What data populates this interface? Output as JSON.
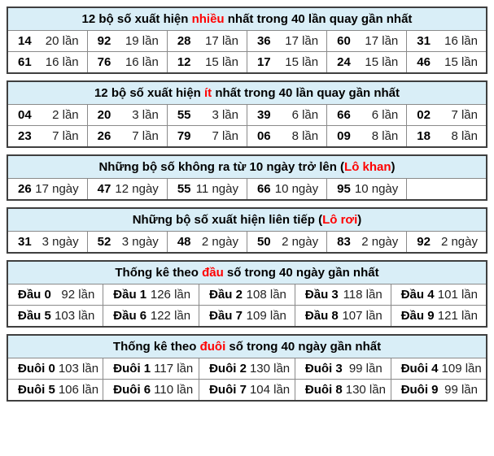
{
  "colors": {
    "accent_red": "#ff0000",
    "header_bg": "#d9eef7",
    "border_outer": "#3f3f3f",
    "border_inner": "#8a8a8a"
  },
  "tables": [
    {
      "id": "most-frequent-pairs",
      "title_parts": [
        {
          "text": "12 bộ số xuất hiện ",
          "red": false
        },
        {
          "text": "nhiều",
          "red": true
        },
        {
          "text": " nhất trong 40 lần quay gần nhất",
          "red": false
        }
      ],
      "trailing_empty": false,
      "rows": [
        [
          {
            "num": "14",
            "cnt": "20 lần"
          },
          {
            "num": "92",
            "cnt": "19 lần"
          },
          {
            "num": "28",
            "cnt": "17 lần"
          },
          {
            "num": "36",
            "cnt": "17 lần"
          },
          {
            "num": "60",
            "cnt": "17 lần"
          },
          {
            "num": "31",
            "cnt": "16 lần"
          }
        ],
        [
          {
            "num": "61",
            "cnt": "16 lần"
          },
          {
            "num": "76",
            "cnt": "16 lần"
          },
          {
            "num": "12",
            "cnt": "15 lần"
          },
          {
            "num": "17",
            "cnt": "15 lần"
          },
          {
            "num": "24",
            "cnt": "15 lần"
          },
          {
            "num": "46",
            "cnt": "15 lần"
          }
        ]
      ]
    },
    {
      "id": "least-frequent-pairs",
      "title_parts": [
        {
          "text": "12 bộ số xuất hiện ",
          "red": false
        },
        {
          "text": "ít",
          "red": true
        },
        {
          "text": " nhất trong 40 lần quay gần nhất",
          "red": false
        }
      ],
      "trailing_empty": false,
      "rows": [
        [
          {
            "num": "04",
            "cnt": "2 lần"
          },
          {
            "num": "20",
            "cnt": "3 lần"
          },
          {
            "num": "55",
            "cnt": "3 lần"
          },
          {
            "num": "39",
            "cnt": "6 lần"
          },
          {
            "num": "66",
            "cnt": "6 lần"
          },
          {
            "num": "02",
            "cnt": "7 lần"
          }
        ],
        [
          {
            "num": "23",
            "cnt": "7 lần"
          },
          {
            "num": "26",
            "cnt": "7 lần"
          },
          {
            "num": "79",
            "cnt": "7 lần"
          },
          {
            "num": "06",
            "cnt": "8 lần"
          },
          {
            "num": "09",
            "cnt": "8 lần"
          },
          {
            "num": "18",
            "cnt": "8 lần"
          }
        ]
      ]
    },
    {
      "id": "lo-khan",
      "title_parts": [
        {
          "text": "Những bộ số không ra từ 10 ngày trở lên (",
          "red": false
        },
        {
          "text": "Lô khan",
          "red": true
        },
        {
          "text": ")",
          "red": false
        }
      ],
      "trailing_empty": true,
      "rows": [
        [
          {
            "num": "26",
            "cnt": "17 ngày"
          },
          {
            "num": "47",
            "cnt": "12 ngày"
          },
          {
            "num": "55",
            "cnt": "11 ngày"
          },
          {
            "num": "66",
            "cnt": "10 ngày"
          },
          {
            "num": "95",
            "cnt": "10 ngày"
          }
        ]
      ]
    },
    {
      "id": "lo-roi",
      "title_parts": [
        {
          "text": "Những bộ số xuất hiện liên tiếp (",
          "red": false
        },
        {
          "text": "Lô rơi",
          "red": true
        },
        {
          "text": ")",
          "red": false
        }
      ],
      "trailing_empty": false,
      "rows": [
        [
          {
            "num": "31",
            "cnt": "3 ngày"
          },
          {
            "num": "52",
            "cnt": "3 ngày"
          },
          {
            "num": "48",
            "cnt": "2 ngày"
          },
          {
            "num": "50",
            "cnt": "2 ngày"
          },
          {
            "num": "83",
            "cnt": "2 ngày"
          },
          {
            "num": "92",
            "cnt": "2 ngày"
          }
        ]
      ]
    },
    {
      "id": "thong-ke-dau",
      "title_parts": [
        {
          "text": "Thống kê theo ",
          "red": false
        },
        {
          "text": "đầu",
          "red": true
        },
        {
          "text": " số trong 40 ngày gần nhất",
          "red": false
        }
      ],
      "trailing_empty": false,
      "rows": [
        [
          {
            "num": "Đầu 0",
            "cnt": "92 lần"
          },
          {
            "num": "Đầu 1",
            "cnt": "126 lần"
          },
          {
            "num": "Đầu 2",
            "cnt": "108 lần"
          },
          {
            "num": "Đầu 3",
            "cnt": "118 lần"
          },
          {
            "num": "Đầu 4",
            "cnt": "101 lần"
          }
        ],
        [
          {
            "num": "Đầu 5",
            "cnt": "103 lần"
          },
          {
            "num": "Đầu 6",
            "cnt": "122 lần"
          },
          {
            "num": "Đầu 7",
            "cnt": "109 lần"
          },
          {
            "num": "Đầu 8",
            "cnt": "107 lần"
          },
          {
            "num": "Đầu 9",
            "cnt": "121 lần"
          }
        ]
      ]
    },
    {
      "id": "thong-ke-duoi",
      "title_parts": [
        {
          "text": "Thống kê theo ",
          "red": false
        },
        {
          "text": "đuôi",
          "red": true
        },
        {
          "text": " số trong 40 ngày gần nhất",
          "red": false
        }
      ],
      "trailing_empty": false,
      "rows": [
        [
          {
            "num": "Đuôi 0",
            "cnt": "103 lần"
          },
          {
            "num": "Đuôi 1",
            "cnt": "117 lần"
          },
          {
            "num": "Đuôi 2",
            "cnt": "130 lần"
          },
          {
            "num": "Đuôi 3",
            "cnt": "99 lần"
          },
          {
            "num": "Đuôi 4",
            "cnt": "109 lần"
          }
        ],
        [
          {
            "num": "Đuôi 5",
            "cnt": "106 lần"
          },
          {
            "num": "Đuôi 6",
            "cnt": "110 lần"
          },
          {
            "num": "Đuôi 7",
            "cnt": "104 lần"
          },
          {
            "num": "Đuôi 8",
            "cnt": "130 lần"
          },
          {
            "num": "Đuôi 9",
            "cnt": "99 lần"
          }
        ]
      ]
    }
  ]
}
